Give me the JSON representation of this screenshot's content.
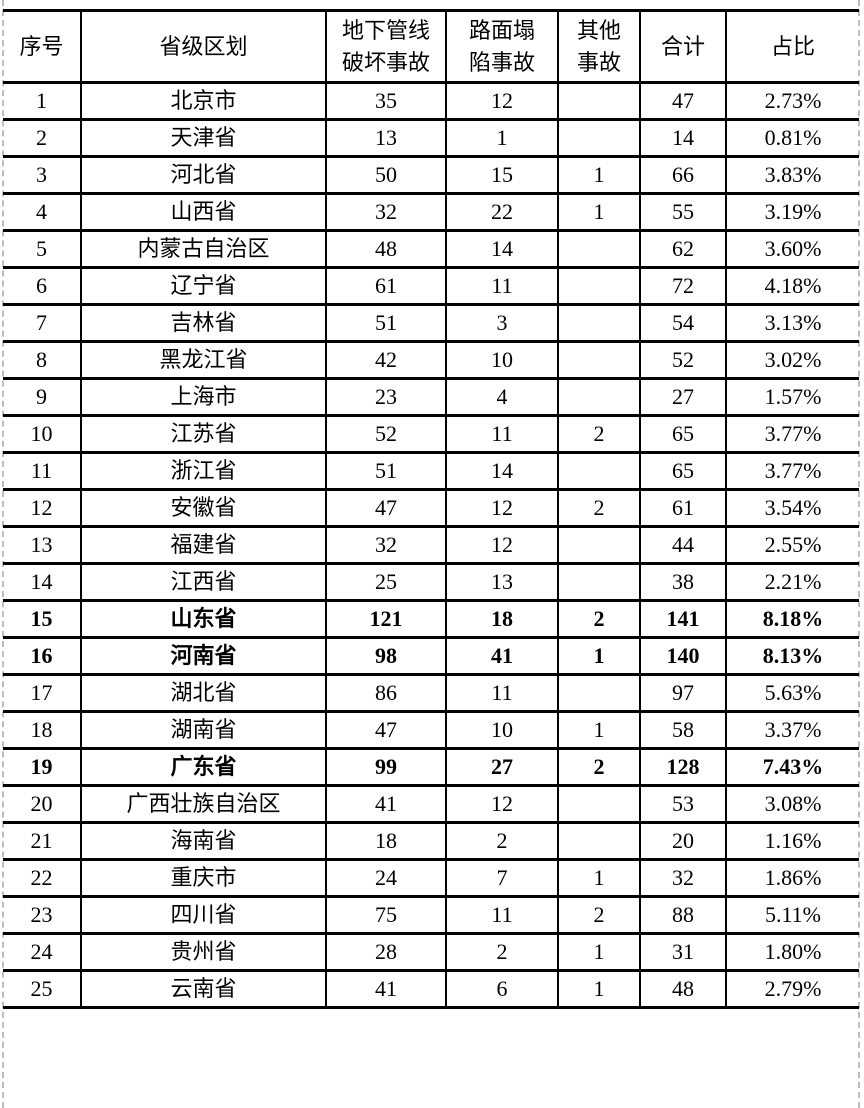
{
  "colors": {
    "background": "#ffffff",
    "text": "#000000",
    "table_border": "#000000",
    "crop_edge_dash": "#bdbdbd"
  },
  "table": {
    "columns": [
      {
        "key": "index",
        "label": "序号"
      },
      {
        "key": "region",
        "label": "省级区划"
      },
      {
        "key": "pipeline",
        "label": "地下管线\n破坏事故"
      },
      {
        "key": "collapse",
        "label": "路面塌\n陷事故"
      },
      {
        "key": "other",
        "label": "其他\n事故"
      },
      {
        "key": "total",
        "label": "合计"
      },
      {
        "key": "share",
        "label": "占比"
      }
    ],
    "rows": [
      {
        "index": "1",
        "region": "北京市",
        "pipeline": "35",
        "collapse": "12",
        "other": "",
        "total": "47",
        "share": "2.73%",
        "bold": false
      },
      {
        "index": "2",
        "region": "天津省",
        "pipeline": "13",
        "collapse": "1",
        "other": "",
        "total": "14",
        "share": "0.81%",
        "bold": false
      },
      {
        "index": "3",
        "region": "河北省",
        "pipeline": "50",
        "collapse": "15",
        "other": "1",
        "total": "66",
        "share": "3.83%",
        "bold": false
      },
      {
        "index": "4",
        "region": "山西省",
        "pipeline": "32",
        "collapse": "22",
        "other": "1",
        "total": "55",
        "share": "3.19%",
        "bold": false
      },
      {
        "index": "5",
        "region": "内蒙古自治区",
        "pipeline": "48",
        "collapse": "14",
        "other": "",
        "total": "62",
        "share": "3.60%",
        "bold": false
      },
      {
        "index": "6",
        "region": "辽宁省",
        "pipeline": "61",
        "collapse": "11",
        "other": "",
        "total": "72",
        "share": "4.18%",
        "bold": false
      },
      {
        "index": "7",
        "region": "吉林省",
        "pipeline": "51",
        "collapse": "3",
        "other": "",
        "total": "54",
        "share": "3.13%",
        "bold": false
      },
      {
        "index": "8",
        "region": "黑龙江省",
        "pipeline": "42",
        "collapse": "10",
        "other": "",
        "total": "52",
        "share": "3.02%",
        "bold": false
      },
      {
        "index": "9",
        "region": "上海市",
        "pipeline": "23",
        "collapse": "4",
        "other": "",
        "total": "27",
        "share": "1.57%",
        "bold": false
      },
      {
        "index": "10",
        "region": "江苏省",
        "pipeline": "52",
        "collapse": "11",
        "other": "2",
        "total": "65",
        "share": "3.77%",
        "bold": false
      },
      {
        "index": "11",
        "region": "浙江省",
        "pipeline": "51",
        "collapse": "14",
        "other": "",
        "total": "65",
        "share": "3.77%",
        "bold": false
      },
      {
        "index": "12",
        "region": "安徽省",
        "pipeline": "47",
        "collapse": "12",
        "other": "2",
        "total": "61",
        "share": "3.54%",
        "bold": false
      },
      {
        "index": "13",
        "region": "福建省",
        "pipeline": "32",
        "collapse": "12",
        "other": "",
        "total": "44",
        "share": "2.55%",
        "bold": false
      },
      {
        "index": "14",
        "region": "江西省",
        "pipeline": "25",
        "collapse": "13",
        "other": "",
        "total": "38",
        "share": "2.21%",
        "bold": false
      },
      {
        "index": "15",
        "region": "山东省",
        "pipeline": "121",
        "collapse": "18",
        "other": "2",
        "total": "141",
        "share": "8.18%",
        "bold": true
      },
      {
        "index": "16",
        "region": "河南省",
        "pipeline": "98",
        "collapse": "41",
        "other": "1",
        "total": "140",
        "share": "8.13%",
        "bold": true
      },
      {
        "index": "17",
        "region": "湖北省",
        "pipeline": "86",
        "collapse": "11",
        "other": "",
        "total": "97",
        "share": "5.63%",
        "bold": false
      },
      {
        "index": "18",
        "region": "湖南省",
        "pipeline": "47",
        "collapse": "10",
        "other": "1",
        "total": "58",
        "share": "3.37%",
        "bold": false
      },
      {
        "index": "19",
        "region": "广东省",
        "pipeline": "99",
        "collapse": "27",
        "other": "2",
        "total": "128",
        "share": "7.43%",
        "bold": true
      },
      {
        "index": "20",
        "region": "广西壮族自治区",
        "pipeline": "41",
        "collapse": "12",
        "other": "",
        "total": "53",
        "share": "3.08%",
        "bold": false
      },
      {
        "index": "21",
        "region": "海南省",
        "pipeline": "18",
        "collapse": "2",
        "other": "",
        "total": "20",
        "share": "1.16%",
        "bold": false
      },
      {
        "index": "22",
        "region": "重庆市",
        "pipeline": "24",
        "collapse": "7",
        "other": "1",
        "total": "32",
        "share": "1.86%",
        "bold": false
      },
      {
        "index": "23",
        "region": "四川省",
        "pipeline": "75",
        "collapse": "11",
        "other": "2",
        "total": "88",
        "share": "5.11%",
        "bold": false
      },
      {
        "index": "24",
        "region": "贵州省",
        "pipeline": "28",
        "collapse": "2",
        "other": "1",
        "total": "31",
        "share": "1.80%",
        "bold": false
      },
      {
        "index": "25",
        "region": "云南省",
        "pipeline": "41",
        "collapse": "6",
        "other": "1",
        "total": "48",
        "share": "2.79%",
        "bold": false
      }
    ]
  }
}
